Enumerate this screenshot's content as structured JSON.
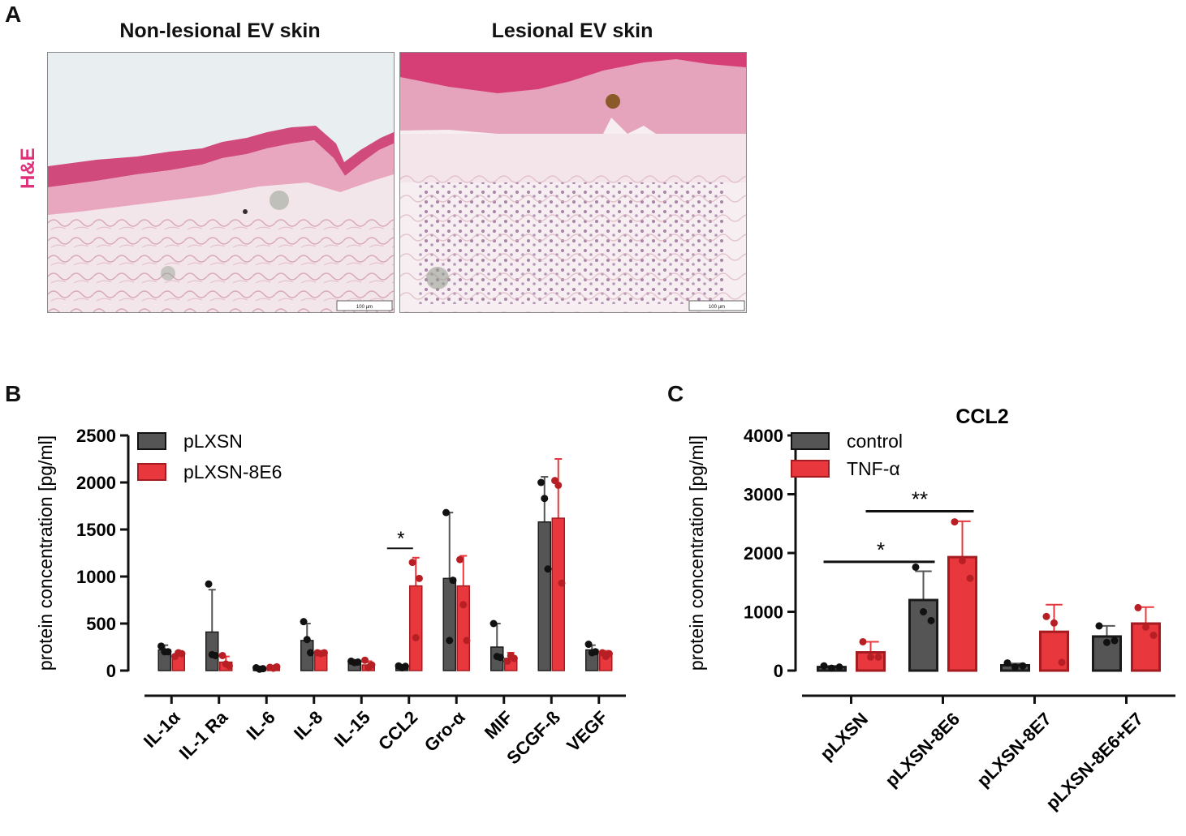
{
  "panel_a": {
    "letter": "A",
    "stain_label": "H&E",
    "images": [
      {
        "title": "Non-lesional EV skin",
        "scalebar": "100 µm"
      },
      {
        "title": "Lesional EV skin",
        "scalebar": "100 µm"
      }
    ]
  },
  "panel_b": {
    "letter": "B"
  },
  "panel_c": {
    "letter": "C"
  },
  "colors": {
    "grey": "#555555",
    "red": "#e8383d",
    "grey_dot": "#111111",
    "red_dot": "#b81f24",
    "stain": "#e0307a"
  },
  "chart_data": [
    {
      "type": "bar",
      "title": "",
      "ylabel": "protein concentration [pg/ml]",
      "xlabel": "",
      "ylim": [
        0,
        2500
      ],
      "yticks": [
        0,
        500,
        1000,
        1500,
        2000,
        2500
      ],
      "categories": [
        "IL-1α",
        "IL-1 Ra",
        "IL-6",
        "IL-8",
        "IL-15",
        "CCL2",
        "Gro-α",
        "MIF",
        "SCGF-ß",
        "VEGF"
      ],
      "legend": {
        "position": "top-left",
        "entries": [
          "pLXSN",
          "pLXSN-8E6"
        ]
      },
      "series": [
        {
          "name": "pLXSN",
          "color": "#555555",
          "values": [
            220,
            410,
            20,
            320,
            90,
            40,
            980,
            250,
            1580,
            220
          ],
          "errors": [
            50,
            450,
            10,
            180,
            20,
            20,
            700,
            250,
            480,
            50
          ],
          "points": [
            [
              260,
              200,
              200
            ],
            [
              920,
              170,
              160
            ],
            [
              30,
              15,
              20
            ],
            [
              520,
              330,
              190
            ],
            [
              100,
              85,
              90
            ],
            [
              50,
              30,
              45
            ],
            [
              1680,
              320,
              960
            ],
            [
              500,
              150,
              140
            ],
            [
              2000,
              1830,
              1080
            ],
            [
              280,
              190,
              200
            ]
          ]
        },
        {
          "name": "pLXSN-8E6",
          "color": "#e8383d",
          "values": [
            170,
            90,
            30,
            180,
            60,
            900,
            900,
            130,
            1620,
            180
          ],
          "errors": [
            30,
            60,
            10,
            30,
            40,
            300,
            320,
            60,
            630,
            30
          ],
          "points": [
            [
              150,
              190,
              180
            ],
            [
              160,
              70,
              50
            ],
            [
              35,
              25,
              40
            ],
            [
              190,
              180,
              190
            ],
            [
              110,
              30,
              60
            ],
            [
              1150,
              350,
              980
            ],
            [
              1180,
              700,
              320
            ],
            [
              100,
              160,
              130
            ],
            [
              2020,
              1970,
              930
            ],
            [
              190,
              150,
              180
            ]
          ]
        }
      ],
      "annotations": [
        {
          "text": "*",
          "between": [
            "CCL2",
            "CCL2"
          ]
        }
      ]
    },
    {
      "type": "bar",
      "title": "CCL2",
      "ylabel": "protein concentration [pg/ml]",
      "xlabel": "",
      "ylim": [
        0,
        4000
      ],
      "yticks": [
        0,
        1000,
        2000,
        3000,
        4000
      ],
      "categories": [
        "pLXSN",
        "pLXSN-8E6",
        "pLXSN-8E7",
        "pLXSN-8E6+E7"
      ],
      "legend": {
        "position": "top-left",
        "entries": [
          "control",
          "TNF-α"
        ]
      },
      "series": [
        {
          "name": "control",
          "color": "#555555",
          "values": [
            60,
            1200,
            90,
            580
          ],
          "errors": [
            20,
            490,
            30,
            180
          ],
          "points": [
            [
              80,
              40,
              60
            ],
            [
              1760,
              1000,
              850
            ],
            [
              130,
              60,
              80
            ],
            [
              760,
              480,
              510
            ]
          ]
        },
        {
          "name": "TNF-α",
          "color": "#e8383d",
          "values": [
            310,
            1930,
            660,
            800
          ],
          "errors": [
            180,
            610,
            460,
            280
          ],
          "points": [
            [
              490,
              230,
              230
            ],
            [
              2530,
              1870,
              1570
            ],
            [
              920,
              810,
              140
            ],
            [
              1070,
              740,
              600
            ]
          ]
        }
      ],
      "annotations": [
        {
          "text": "*",
          "from": "pLXSN",
          "to": "pLXSN-8E6"
        },
        {
          "text": "**",
          "from": "pLXSN",
          "to": "pLXSN-8E6"
        }
      ]
    }
  ]
}
